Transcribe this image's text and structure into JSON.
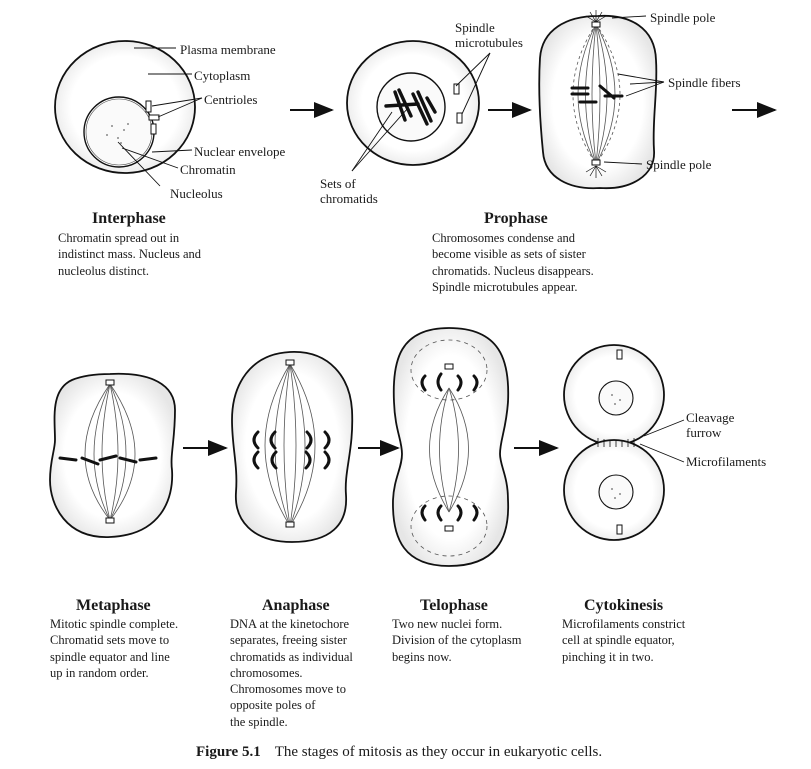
{
  "labels": {
    "plasma_membrane": "Plasma membrane",
    "cytoplasm": "Cytoplasm",
    "centrioles": "Centrioles",
    "nuclear_envelope": "Nuclear envelope",
    "chromatin": "Chromatin",
    "nucleolus": "Nucleolus",
    "spindle_microtubules": [
      "Spindle",
      "microtubules"
    ],
    "sets_of_chromatids": [
      "Sets of",
      "chromatids"
    ],
    "spindle_pole_top": "Spindle pole",
    "spindle_fibers": "Spindle fibers",
    "spindle_pole_bottom": "Spindle pole",
    "cleavage_furrow": [
      "Cleavage",
      "furrow"
    ],
    "microfilaments": "Microfilaments"
  },
  "stages": {
    "interphase": {
      "title": "Interphase",
      "lines": [
        "Chromatin spread out in",
        "indistinct mass. Nucleus and",
        "nucleolus distinct."
      ]
    },
    "prophase": {
      "title": "Prophase",
      "lines": [
        "Chromosomes condense and",
        "become visible as sets of sister",
        "chromatids. Nucleus disappears.",
        "Spindle microtubules appear."
      ]
    },
    "metaphase": {
      "title": "Metaphase",
      "lines": [
        "Mitotic spindle complete.",
        "Chromatid sets move to",
        "spindle equator and line",
        "up in random order."
      ]
    },
    "anaphase": {
      "title": "Anaphase",
      "lines": [
        "DNA at the kinetochore",
        "separates, freeing sister",
        "chromatids as individual",
        "chromosomes.",
        "Chromosomes move to",
        "opposite poles of",
        "the spindle."
      ]
    },
    "telophase": {
      "title": "Telophase",
      "lines": [
        "Two new nuclei form.",
        "Division of the cytoplasm",
        "begins now."
      ]
    },
    "cytokinesis": {
      "title": "Cytokinesis",
      "lines": [
        "Microfilaments constrict",
        "cell at spindle equator,",
        "pinching it in two."
      ]
    }
  },
  "caption": {
    "label": "Figure 5.1",
    "text": "The stages of mitosis as they occur in eukaryotic cells."
  }
}
